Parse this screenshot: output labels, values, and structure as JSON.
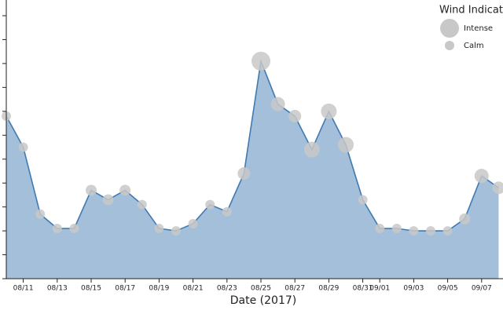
{
  "chart_data": {
    "type": "area",
    "x_label": "Date (2017)",
    "x": [
      null,
      "08/11",
      null,
      "08/13",
      null,
      "08/15",
      null,
      "08/17",
      null,
      "08/19",
      null,
      "08/21",
      null,
      "08/23",
      null,
      "08/25",
      null,
      "08/27",
      null,
      "08/29",
      null,
      "08/31",
      "09/01",
      null,
      "09/03",
      null,
      "09/05",
      null,
      "09/07",
      null
    ],
    "values": [
      6.8,
      5.5,
      2.7,
      2.1,
      2.1,
      3.7,
      3.3,
      3.7,
      3.1,
      2.1,
      2.0,
      2.3,
      3.1,
      2.8,
      4.4,
      9.1,
      7.3,
      6.8,
      5.4,
      7.0,
      5.6,
      3.3,
      2.1,
      2.1,
      2.0,
      2.0,
      2.0,
      2.5,
      4.3,
      3.8
    ],
    "wind": [
      6,
      6,
      6,
      6,
      6,
      7,
      7,
      7,
      6,
      6,
      6,
      6,
      6,
      6,
      8,
      12,
      9,
      8,
      10,
      10,
      10,
      6,
      6,
      6,
      6,
      6,
      6,
      7,
      9,
      8
    ],
    "ylim": [
      0,
      11
    ],
    "yticks": [
      0,
      1,
      2,
      3,
      4,
      5,
      6,
      7,
      8,
      9,
      10,
      11
    ],
    "color": "#a3bfda",
    "line_color": "#3f7ab3",
    "marker_color": "#c8c8c8",
    "legend": {
      "title": "Wind Indicato",
      "items": [
        {
          "name": "Intense",
          "size": 12
        },
        {
          "name": "Calm",
          "size": 6
        }
      ]
    }
  }
}
